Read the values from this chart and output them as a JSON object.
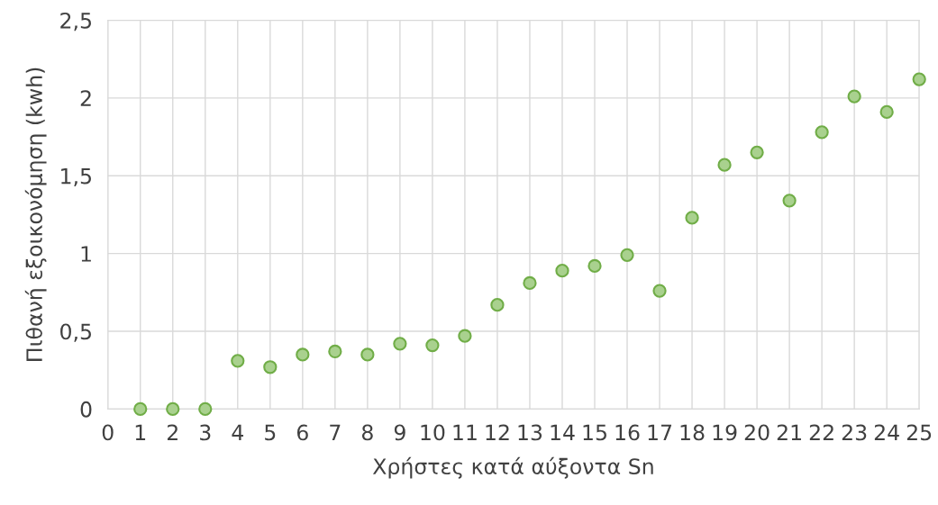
{
  "chart_data": {
    "type": "scatter",
    "xlabel": "Χρήστες κατά αύξοντα Sn",
    "ylabel": "Πιθανή εξοικονόμηση (kwh)",
    "x": [
      1,
      2,
      3,
      4,
      5,
      6,
      7,
      8,
      9,
      10,
      11,
      12,
      13,
      14,
      15,
      16,
      17,
      18,
      19,
      20,
      21,
      22,
      23,
      24,
      25
    ],
    "series": [
      {
        "color": "#a9d18e",
        "values": [
          0,
          0,
          0,
          0.31,
          0.27,
          0.35,
          0.37,
          0.35,
          0.42,
          0.41,
          0.47,
          0.67,
          0.81,
          0.89,
          0.92,
          0.99,
          0.76,
          1.23,
          1.57,
          1.65,
          1.34,
          1.78,
          2.01,
          1.91,
          2.12
        ]
      }
    ],
    "xlim": [
      0,
      25
    ],
    "xticks": [
      0,
      1,
      2,
      3,
      4,
      5,
      6,
      7,
      8,
      9,
      10,
      11,
      12,
      13,
      14,
      15,
      16,
      17,
      18,
      19,
      20,
      21,
      22,
      23,
      24,
      25
    ],
    "ylim": [
      0,
      2.5
    ],
    "yticks": [
      0,
      {
        "value": 0.5,
        "label": "0,5"
      },
      1,
      {
        "value": 1.5,
        "label": "1,5"
      },
      2,
      {
        "value": 2.5,
        "label": "2,5"
      }
    ],
    "grid": true,
    "marker": "circle"
  }
}
